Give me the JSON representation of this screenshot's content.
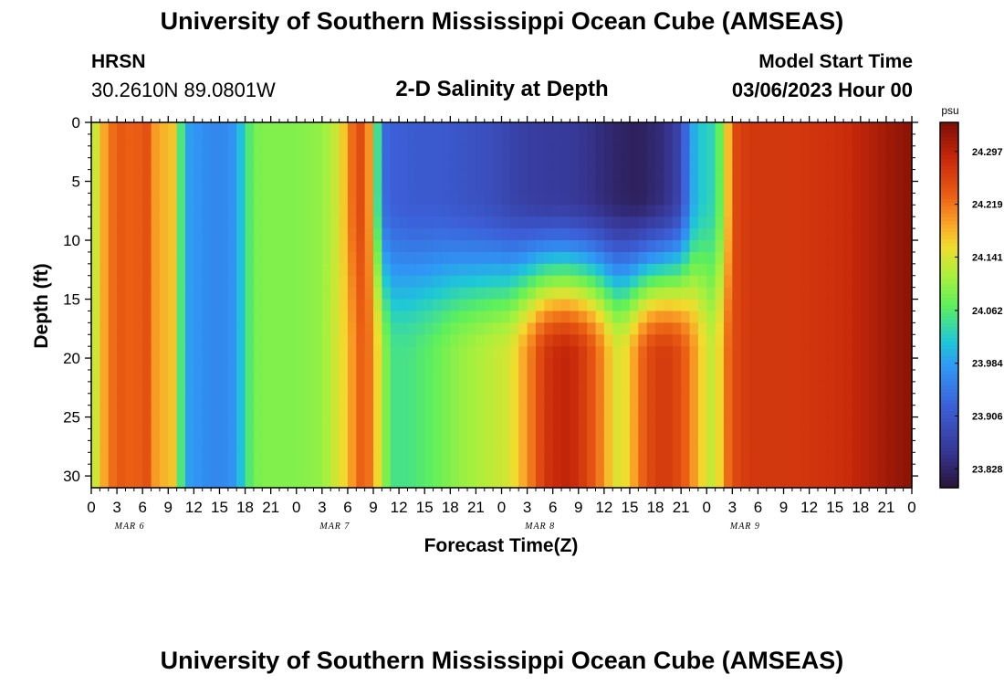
{
  "header": {
    "title": "University of Southern Mississippi Ocean Cube (AMSEAS)",
    "station_name": "HRSN",
    "station_coords": "30.2610N  89.0801W",
    "model_start_label": "Model Start Time",
    "model_start_value": "03/06/2023 Hour 00"
  },
  "footer": {
    "title": "University of Southern Mississippi Ocean Cube (AMSEAS)"
  },
  "chart_data": {
    "type": "heatmap",
    "title": "2-D Salinity at Depth",
    "xlabel": "Forecast Time(Z)",
    "ylabel": "Depth (ft)",
    "y_ticks": [
      0,
      5,
      10,
      15,
      20,
      25,
      30
    ],
    "ylim": [
      0,
      31
    ],
    "x_hours_range": [
      0,
      96
    ],
    "x_tick_labels": [
      "0",
      "3",
      "6",
      "9",
      "12",
      "15",
      "18",
      "21",
      "0",
      "3",
      "6",
      "9",
      "12",
      "15",
      "18",
      "21",
      "0",
      "3",
      "6",
      "9",
      "12",
      "15",
      "18",
      "21",
      "0",
      "3",
      "6",
      "9",
      "12",
      "15",
      "18",
      "21",
      "0"
    ],
    "date_labels": [
      "MAR 6",
      "MAR 7",
      "MAR 8",
      "MAR 9"
    ],
    "colorbar": {
      "unit": "psu",
      "min": 23.8,
      "max": 24.34,
      "ticks": [
        "23.828",
        "23.906",
        "23.984",
        "24.062",
        "24.141",
        "24.219",
        "24.297"
      ]
    },
    "surface_profile": {
      "hours": [
        0,
        1,
        3,
        5,
        7,
        8,
        9,
        10,
        11,
        13,
        15,
        17,
        18,
        19,
        20,
        21,
        24,
        27,
        29,
        31,
        32,
        33,
        34,
        35,
        38,
        41,
        44,
        47,
        50,
        53,
        55,
        58,
        61,
        64,
        67,
        69,
        70,
        71,
        72,
        73,
        74,
        75,
        77,
        82,
        88,
        91,
        94,
        96
      ],
      "values": [
        24.1,
        24.17,
        24.24,
        24.23,
        24.25,
        24.14,
        24.22,
        24.12,
        23.99,
        23.97,
        23.96,
        23.98,
        24.04,
        24.08,
        24.09,
        24.09,
        24.09,
        24.1,
        24.14,
        24.25,
        24.25,
        24.15,
        23.94,
        23.92,
        23.91,
        23.91,
        23.9,
        23.89,
        23.87,
        23.86,
        23.86,
        23.85,
        23.83,
        23.82,
        23.84,
        23.88,
        23.97,
        24.02,
        24.02,
        24.04,
        24.1,
        24.25,
        24.27,
        24.27,
        24.28,
        24.3,
        24.32,
        24.33
      ]
    },
    "deep_profile": {
      "hours": [
        0,
        1,
        3,
        5,
        7,
        8,
        9,
        10,
        11,
        13,
        15,
        17,
        18,
        19,
        20,
        21,
        24,
        27,
        30,
        31,
        32,
        33,
        34,
        35,
        37,
        40,
        43,
        46,
        49,
        51,
        53,
        55,
        56,
        58,
        60,
        61,
        62,
        63,
        65,
        67,
        69,
        71,
        72,
        73,
        74,
        75,
        77,
        82,
        88,
        91,
        94,
        96
      ],
      "values": [
        24.1,
        24.17,
        24.24,
        24.23,
        24.25,
        24.14,
        24.22,
        24.12,
        23.99,
        23.97,
        23.96,
        23.98,
        24.04,
        24.08,
        24.09,
        24.09,
        24.09,
        24.1,
        24.17,
        24.22,
        24.24,
        24.2,
        24.12,
        24.05,
        24.05,
        24.07,
        24.1,
        24.12,
        24.14,
        24.2,
        24.27,
        24.29,
        24.29,
        24.26,
        24.2,
        24.15,
        24.14,
        24.17,
        24.25,
        24.27,
        24.25,
        24.18,
        24.14,
        24.12,
        24.2,
        24.25,
        24.27,
        24.27,
        24.28,
        24.3,
        24.32,
        24.33
      ]
    }
  }
}
